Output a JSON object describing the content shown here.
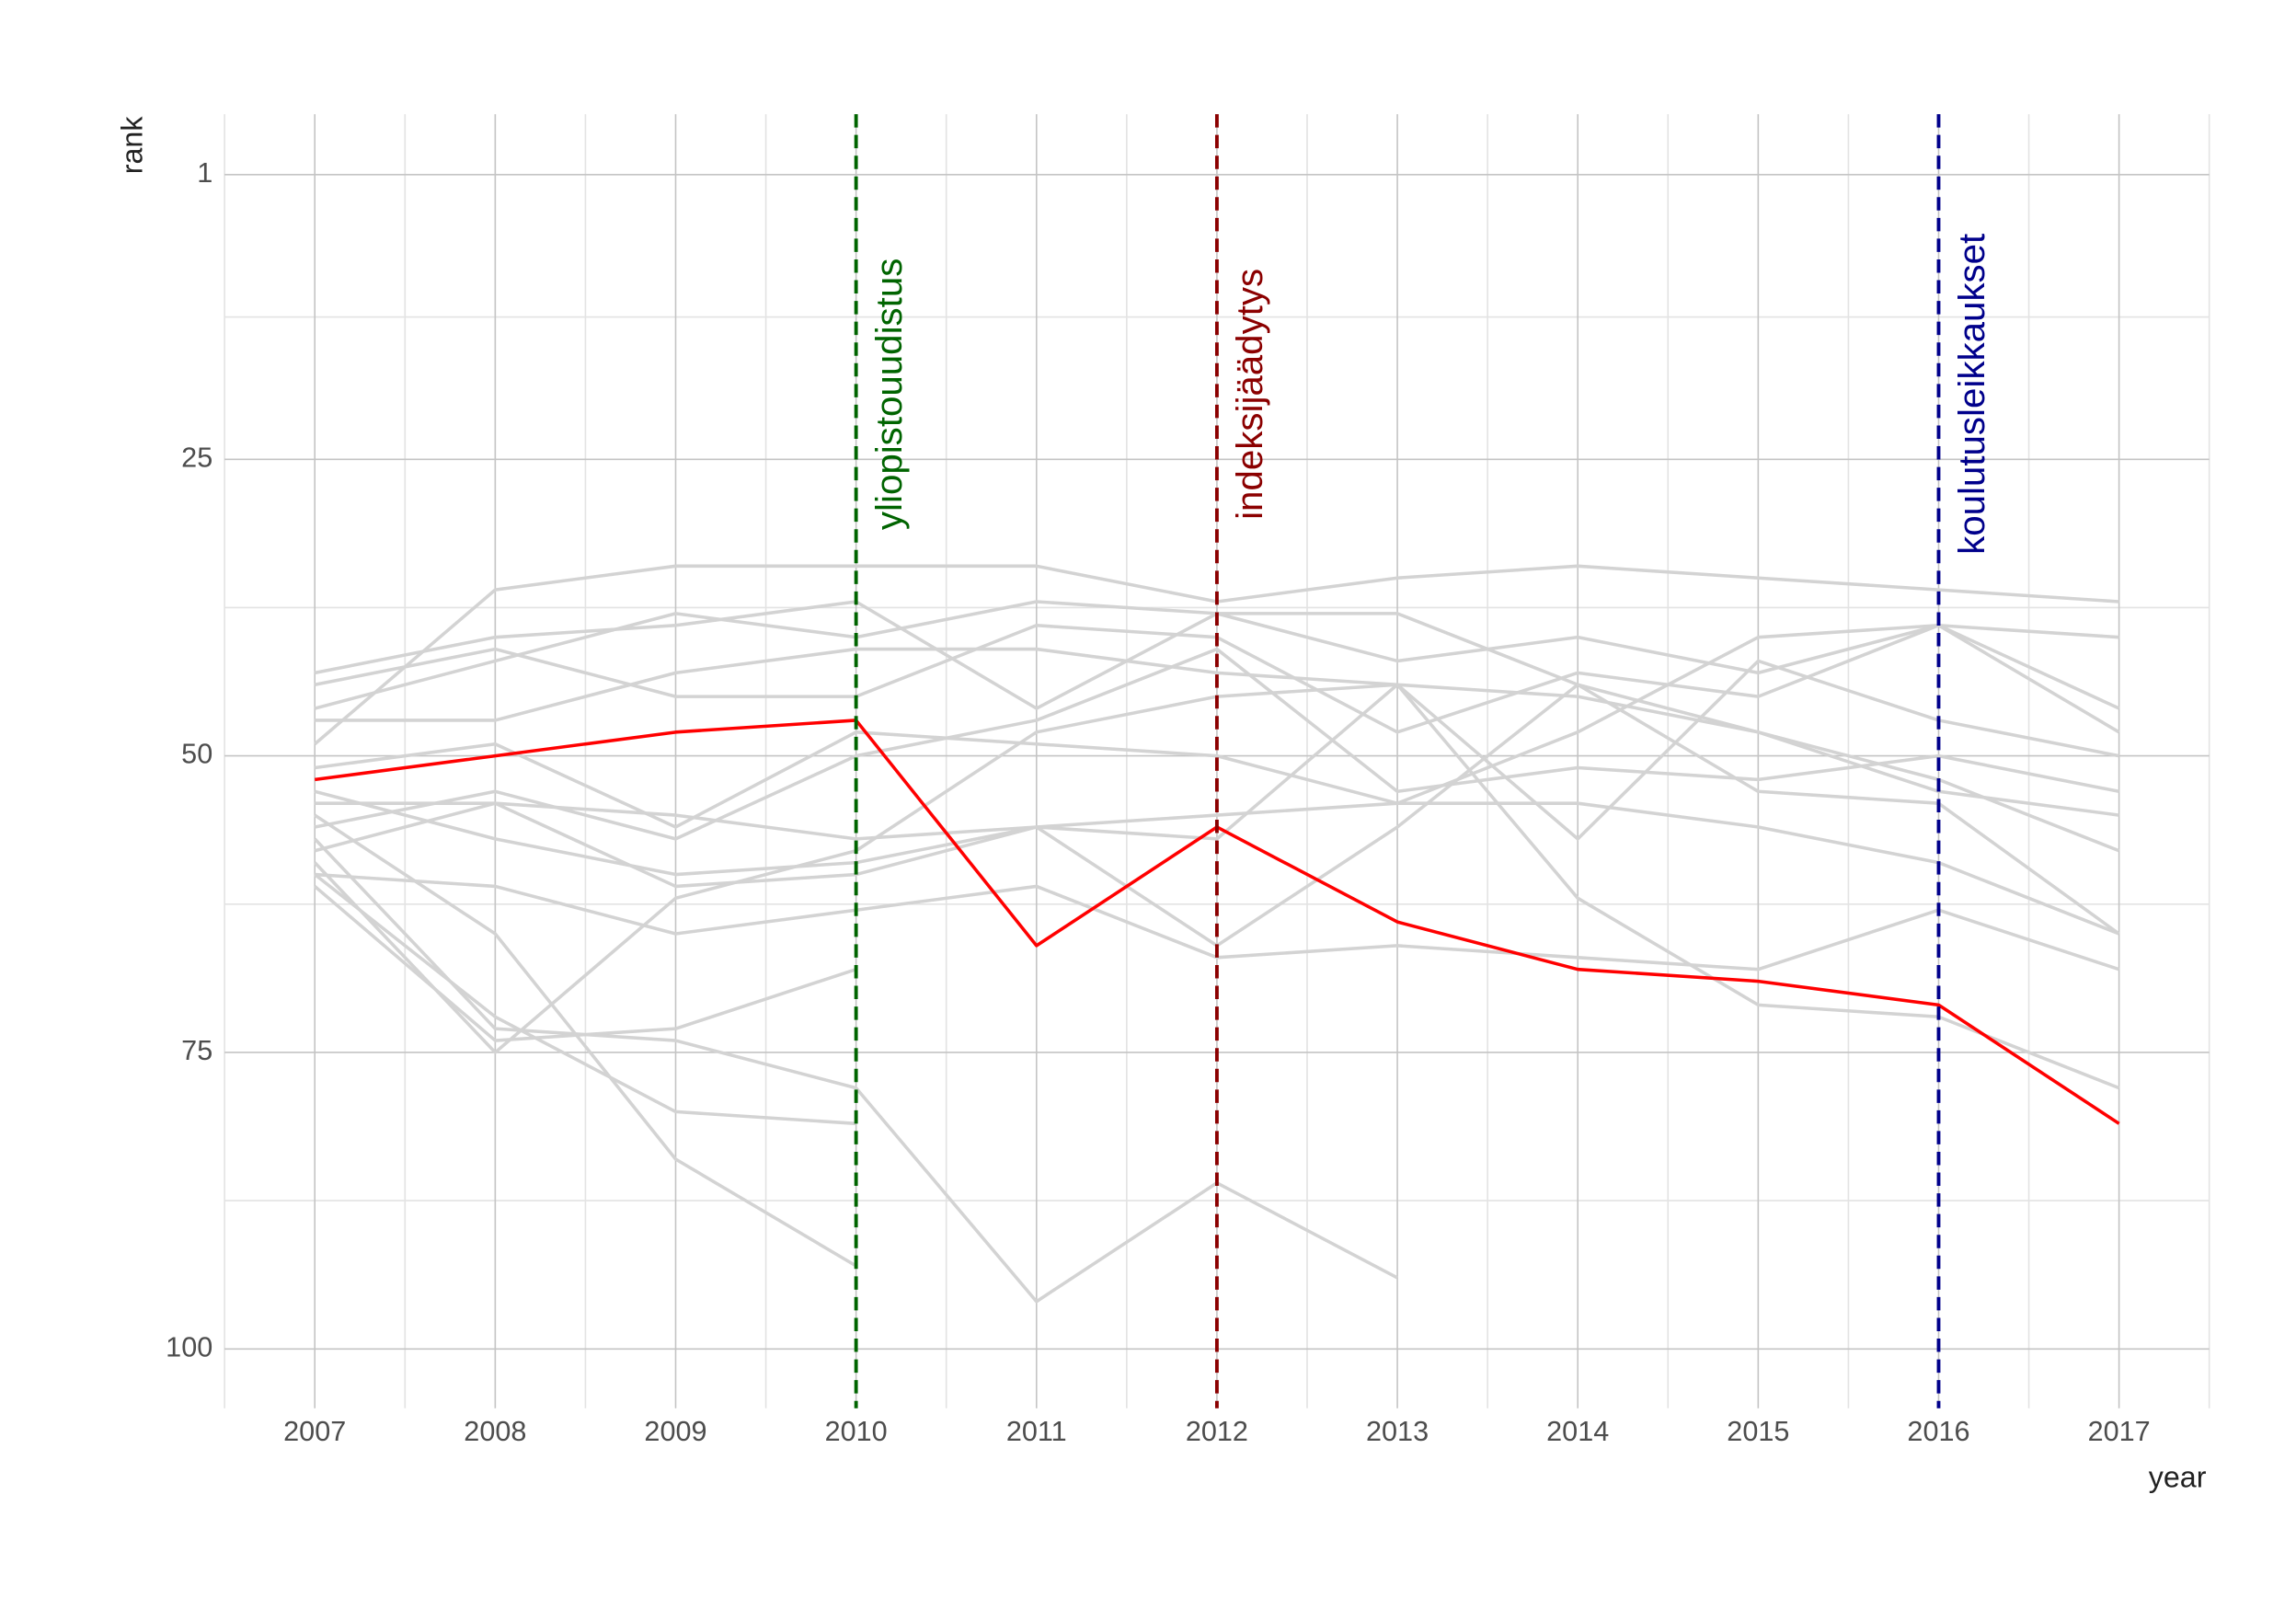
{
  "chart_data": {
    "type": "line",
    "x_label": "year",
    "y_label": "rank",
    "x": [
      2007,
      2008,
      2009,
      2010,
      2011,
      2012,
      2013,
      2014,
      2015,
      2016,
      2017
    ],
    "xlim": [
      2006.5,
      2017.5
    ],
    "xticks": [
      2007,
      2008,
      2009,
      2010,
      2011,
      2012,
      2013,
      2014,
      2015,
      2016,
      2017
    ],
    "ylim": [
      -4.1,
      105
    ],
    "y_reversed": true,
    "yticks": [
      1,
      25,
      50,
      75,
      100
    ],
    "grid": true,
    "series": [
      {
        "color": "#d3d3d3",
        "values": [
          49,
          36,
          34,
          34,
          34,
          37,
          35,
          34,
          35,
          36,
          37
        ]
      },
      {
        "color": "#d3d3d3",
        "values": [
          43,
          40,
          39,
          37,
          46,
          38,
          42,
          40,
          43,
          39,
          40
        ]
      },
      {
        "color": "#d3d3d3",
        "values": [
          46,
          42,
          38,
          40,
          37,
          38,
          38,
          44,
          48,
          53,
          55
        ]
      },
      {
        "color": "#d3d3d3",
        "values": [
          47,
          47,
          43,
          41,
          41,
          43,
          44,
          45,
          48,
          52,
          58
        ]
      },
      {
        "color": "#d3d3d3",
        "values": [
          44,
          41,
          45,
          45,
          39,
          40,
          48,
          43,
          45,
          39,
          46
        ]
      },
      {
        "color": "#d3d3d3",
        "values": [
          51,
          49,
          56,
          48,
          49,
          50,
          54,
          48,
          40,
          39,
          48
        ]
      },
      {
        "color": "#d3d3d3",
        "values": [
          53,
          57,
          60,
          59,
          56,
          57,
          44,
          57,
          42,
          47,
          50
        ]
      },
      {
        "color": "#d3d3d3",
        "values": [
          54,
          54,
          55,
          57,
          56,
          55,
          54,
          54,
          56,
          59,
          65
        ]
      },
      {
        "color": "#d3d3d3",
        "values": [
          56,
          53,
          57,
          50,
          47,
          41,
          53,
          51,
          52,
          50,
          53
        ]
      },
      {
        "color": "#d3d3d3",
        "values": [
          58,
          54,
          61,
          60,
          56,
          66,
          56,
          44,
          53,
          54,
          65
        ]
      },
      {
        "color": "#d3d3d3",
        "values": [
          60,
          61,
          65,
          63,
          61,
          67,
          66,
          67,
          68,
          63,
          68
        ]
      },
      {
        "color": "#d3d3d3",
        "values": [
          59,
          75,
          62,
          58,
          48,
          45,
          44,
          62,
          71,
          72,
          78
        ]
      },
      {
        "color": "#d3d3d3",
        "values": [
          55,
          65,
          84,
          93,
          null,
          null,
          null,
          null,
          null,
          null,
          null
        ]
      },
      {
        "color": "#d3d3d3",
        "values": [
          57,
          73,
          74,
          78,
          96,
          86,
          94,
          null,
          null,
          null,
          null
        ]
      },
      {
        "color": "#d3d3d3",
        "values": [
          61,
          74,
          73,
          68,
          null,
          null,
          null,
          null,
          null,
          null,
          null
        ]
      },
      {
        "color": "#d3d3d3",
        "values": [
          60,
          72,
          80,
          81,
          null,
          null,
          null,
          null,
          null,
          null,
          null
        ]
      },
      {
        "color": "#ff0000",
        "values": [
          52,
          50,
          48,
          47,
          66,
          56,
          64,
          68,
          69,
          71,
          81
        ]
      }
    ],
    "annotations": [
      {
        "x": 2010,
        "y": 19.5,
        "label": "yliopistouudistus",
        "color": "#006400"
      },
      {
        "x": 2012,
        "y": 19.5,
        "label": "indeksijäädytys",
        "color": "#8b0000"
      },
      {
        "x": 2016,
        "y": 19.5,
        "label": "koulutusleikkaukset",
        "color": "#00008b"
      }
    ]
  }
}
